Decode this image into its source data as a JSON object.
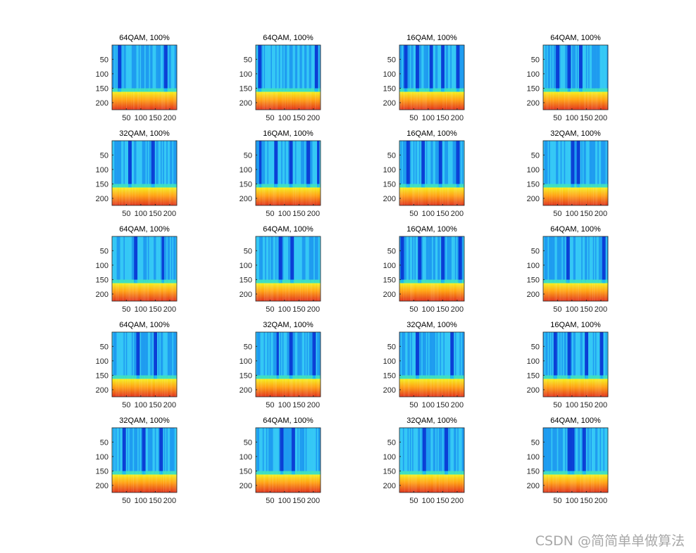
{
  "chart_data": [
    {
      "type": "heatmap",
      "title": "64QAM, 100%",
      "dark_columns": [
        25,
        185
      ]
    },
    {
      "type": "heatmap",
      "title": "64QAM, 100%",
      "dark_columns": [
        12,
        210
      ]
    },
    {
      "type": "heatmap",
      "title": "16QAM, 100%",
      "dark_columns": [
        20,
        60,
        110,
        150,
        200
      ]
    },
    {
      "type": "heatmap",
      "title": "64QAM, 100%",
      "dark_columns": [
        50,
        90,
        130
      ]
    },
    {
      "type": "heatmap",
      "title": "32QAM, 100%",
      "dark_columns": [
        60,
        140
      ]
    },
    {
      "type": "heatmap",
      "title": "16QAM, 100%",
      "dark_columns": [
        15,
        70,
        120,
        180,
        215
      ]
    },
    {
      "type": "heatmap",
      "title": "16QAM, 100%",
      "dark_columns": [
        30,
        80,
        140,
        200
      ]
    },
    {
      "type": "heatmap",
      "title": "32QAM, 100%",
      "dark_columns": [
        100,
        120
      ]
    },
    {
      "type": "heatmap",
      "title": "64QAM, 100%",
      "dark_columns": [
        80,
        175
      ]
    },
    {
      "type": "heatmap",
      "title": "64QAM, 100%",
      "dark_columns": [
        85,
        125
      ]
    },
    {
      "type": "heatmap",
      "title": "16QAM, 100%",
      "dark_columns": [
        10,
        70,
        150,
        210
      ]
    },
    {
      "type": "heatmap",
      "title": "64QAM, 100%",
      "dark_columns": [
        85,
        210
      ]
    },
    {
      "type": "heatmap",
      "title": "64QAM, 100%",
      "dark_columns": [
        90,
        150
      ]
    },
    {
      "type": "heatmap",
      "title": "32QAM, 100%",
      "dark_columns": [
        75,
        120,
        200
      ]
    },
    {
      "type": "heatmap",
      "title": "32QAM, 100%",
      "dark_columns": [
        60,
        180
      ]
    },
    {
      "type": "heatmap",
      "title": "16QAM, 100%",
      "dark_columns": [
        40,
        90,
        150,
        200
      ]
    },
    {
      "type": "heatmap",
      "title": "32QAM, 100%",
      "dark_columns": [
        40,
        110,
        170
      ]
    },
    {
      "type": "heatmap",
      "title": "64QAM, 100%",
      "dark_columns": [
        90,
        130
      ]
    },
    {
      "type": "heatmap",
      "title": "32QAM, 100%",
      "dark_columns": [
        85,
        160
      ]
    },
    {
      "type": "heatmap",
      "title": "64QAM, 100%",
      "dark_columns": [
        90,
        100,
        140
      ]
    }
  ],
  "axes": {
    "xlim": [
      1,
      224
    ],
    "ylim": [
      1,
      224
    ],
    "xticks": [
      50,
      100,
      150,
      200
    ],
    "yticks": [
      50,
      100,
      150,
      200
    ],
    "y_reversed": true,
    "transition_row": 160
  },
  "colors": {
    "upper": "#1e9cf0",
    "upper_alt": "#35c8f5",
    "dark": "#0a3fd6",
    "lower_top": "#f4f01a",
    "lower_mid": "#ffa010",
    "lower_bottom": "#e0301a"
  },
  "watermark": "CSDN @简简单单做算法"
}
